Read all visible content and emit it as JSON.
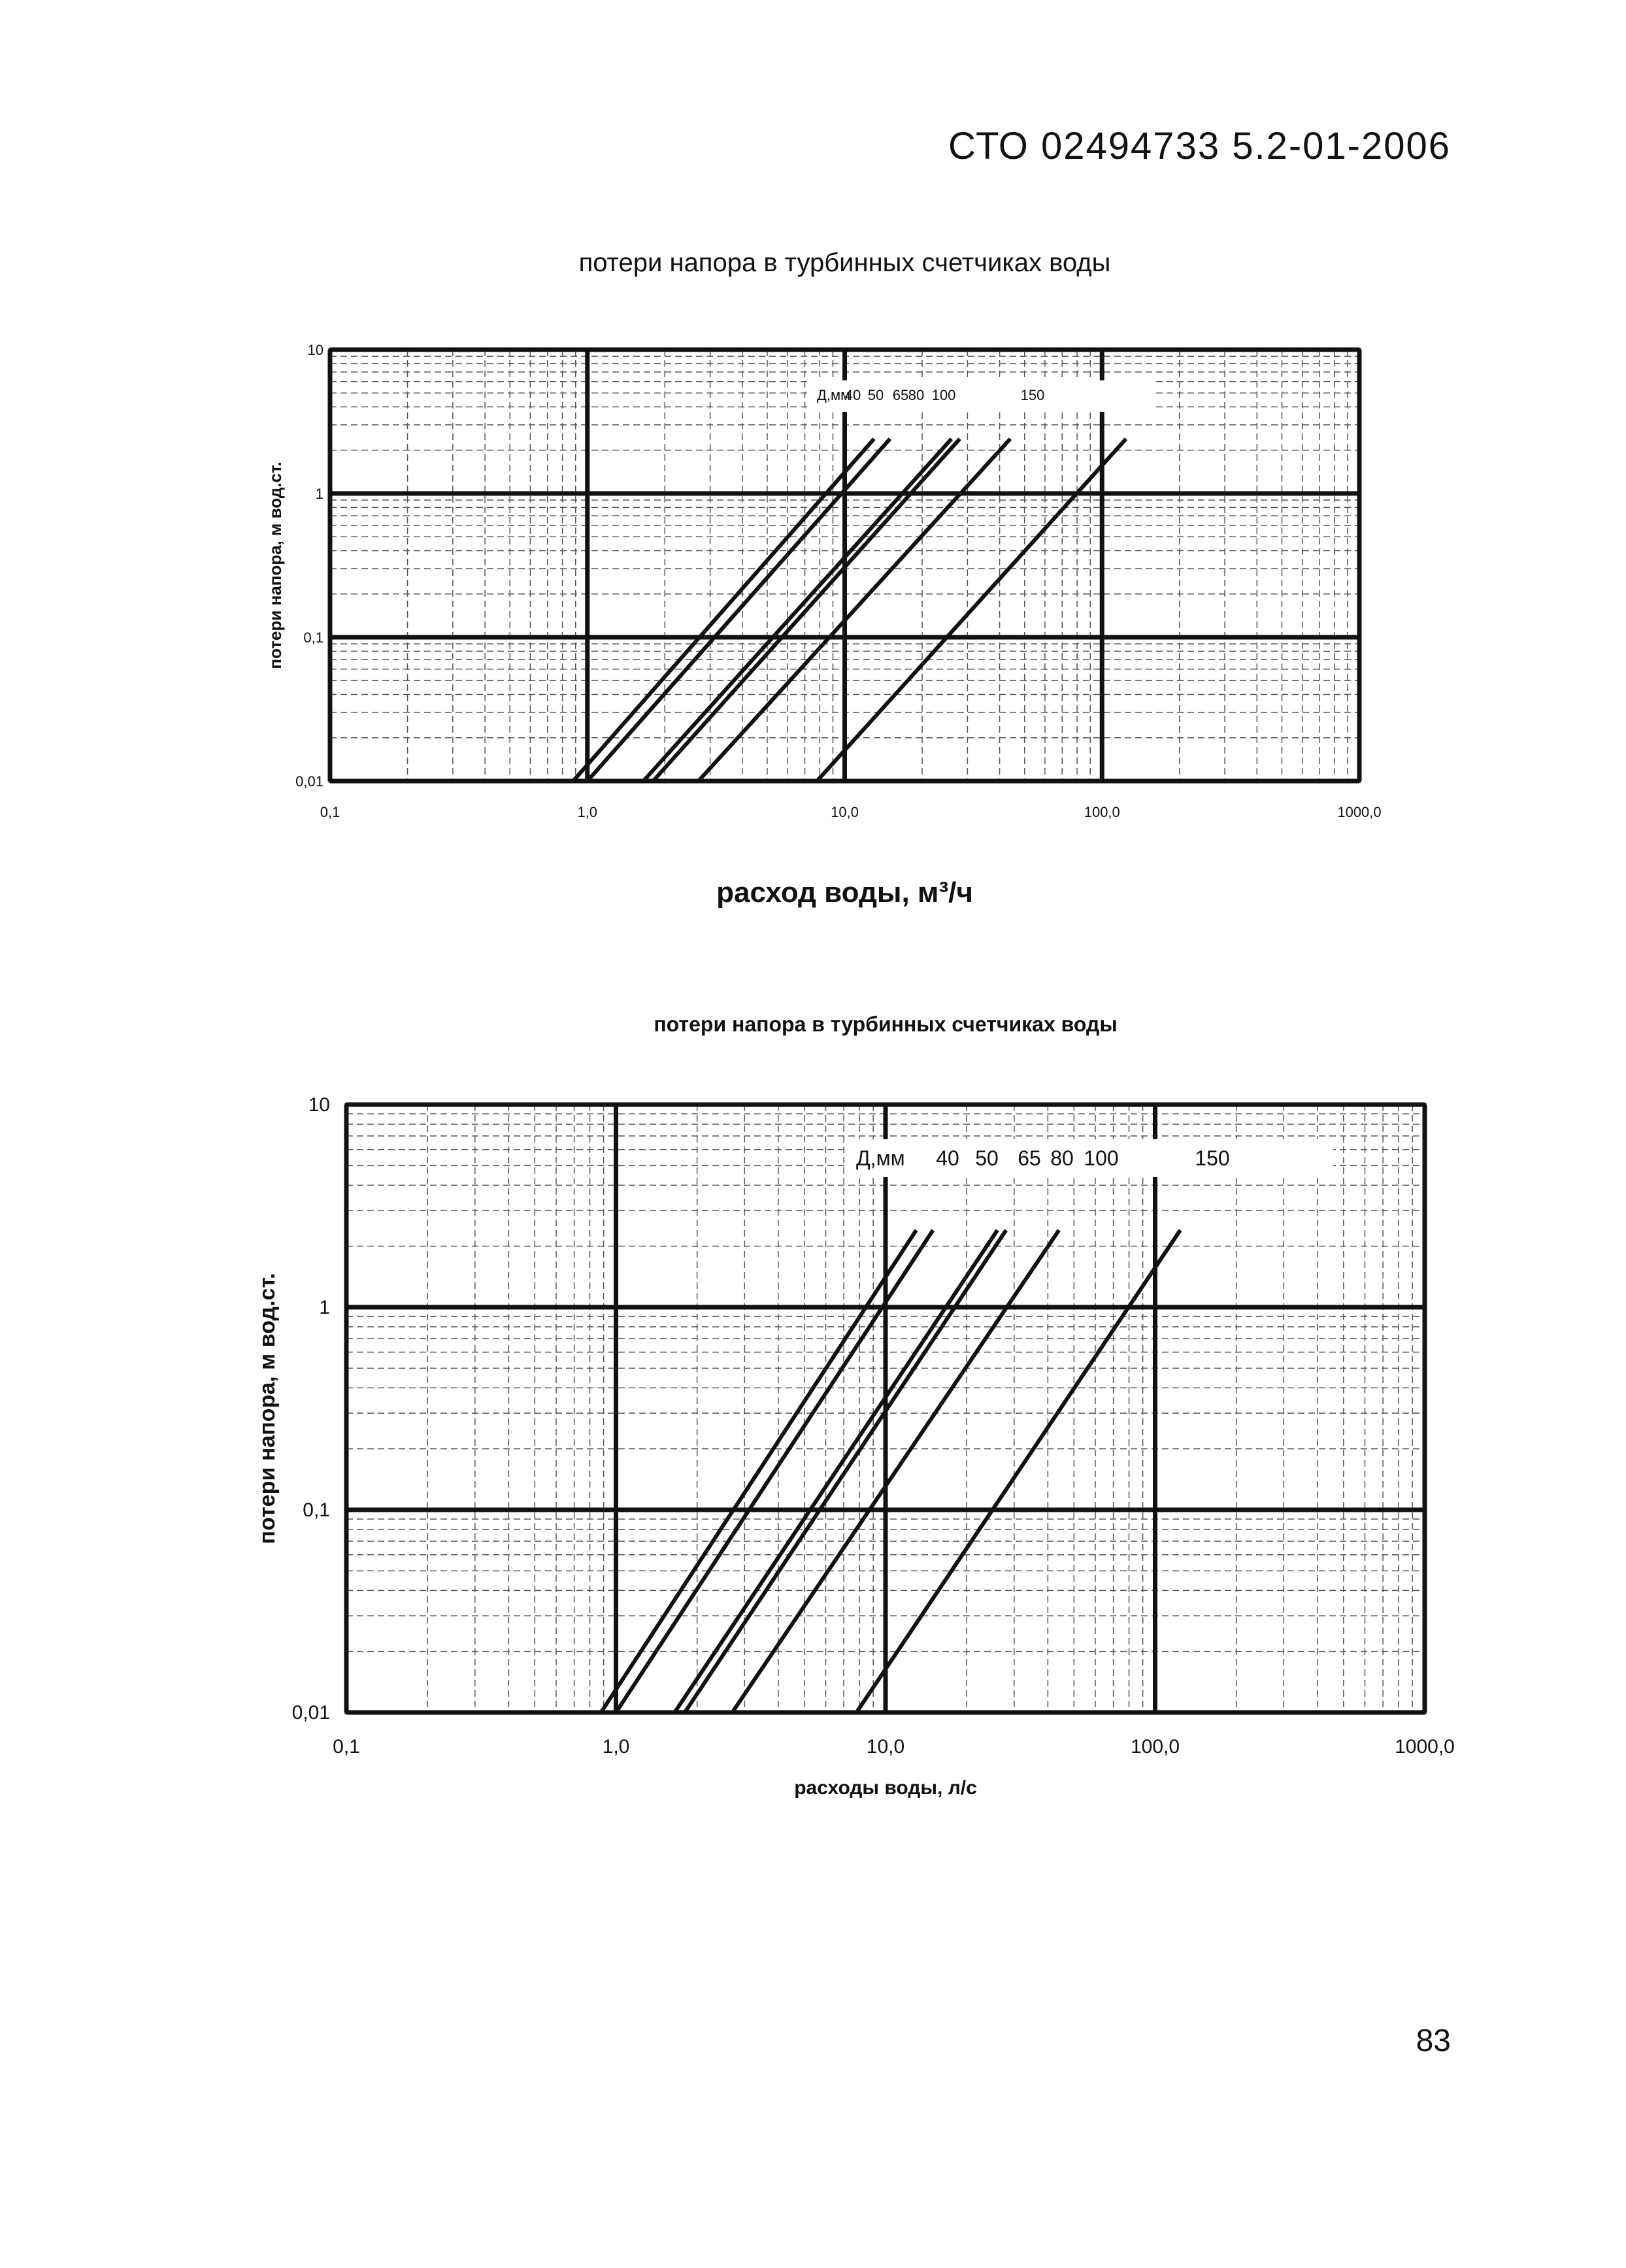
{
  "header": {
    "doc_code": "СТО 02494733 5.2-01-2006"
  },
  "footer": {
    "page_number": "83"
  },
  "chart_data": [
    {
      "type": "line",
      "title": "потери напора в турбинных счетчиках воды",
      "xlabel": "расход воды, м³/ч",
      "ylabel": "потери напора, м вод.ст.",
      "x_scale": "log",
      "y_scale": "log",
      "xlim": [
        0.1,
        1000
      ],
      "ylim": [
        0.01,
        10
      ],
      "x_ticks": [
        "0,1",
        "1,0",
        "10,0",
        "100,0",
        "1000,0"
      ],
      "y_ticks": [
        "0,01",
        "0,1",
        "1",
        "10"
      ],
      "grid": true,
      "legend_prefix": "Д,мм",
      "series": [
        {
          "name": "40",
          "points": [
            [
              0.88,
              0.01
            ],
            [
              13,
              2.4
            ]
          ]
        },
        {
          "name": "50",
          "points": [
            [
              1.0,
              0.01
            ],
            [
              15,
              2.4
            ]
          ]
        },
        {
          "name": "65",
          "points": [
            [
              1.65,
              0.01
            ],
            [
              26,
              2.4
            ]
          ]
        },
        {
          "name": "80",
          "points": [
            [
              1.8,
              0.01
            ],
            [
              28,
              2.4
            ]
          ]
        },
        {
          "name": "100",
          "points": [
            [
              2.7,
              0.01
            ],
            [
              44,
              2.4
            ]
          ]
        },
        {
          "name": "150",
          "points": [
            [
              7.8,
              0.01
            ],
            [
              124,
              2.4
            ]
          ]
        }
      ]
    },
    {
      "type": "line",
      "title": "потери напора в турбинных счетчиках воды",
      "xlabel": "расходы воды, л/с",
      "ylabel": "потери напора, м вод.ст.",
      "x_scale": "log",
      "y_scale": "log",
      "xlim": [
        0.1,
        1000
      ],
      "ylim": [
        0.01,
        10
      ],
      "x_ticks": [
        "0,1",
        "1,0",
        "10,0",
        "100,0",
        "1000,0"
      ],
      "y_ticks": [
        "0,01",
        "0,1",
        "1",
        "10"
      ],
      "grid": true,
      "legend_prefix": "Д,мм",
      "series": [
        {
          "name": "40",
          "points": [
            [
              0.88,
              0.01
            ],
            [
              13,
              2.4
            ]
          ]
        },
        {
          "name": "50",
          "points": [
            [
              1.0,
              0.01
            ],
            [
              15,
              2.4
            ]
          ]
        },
        {
          "name": "65",
          "points": [
            [
              1.65,
              0.01
            ],
            [
              26,
              2.4
            ]
          ]
        },
        {
          "name": "80",
          "points": [
            [
              1.8,
              0.01
            ],
            [
              28,
              2.4
            ]
          ]
        },
        {
          "name": "100",
          "points": [
            [
              2.7,
              0.01
            ],
            [
              44,
              2.4
            ]
          ]
        },
        {
          "name": "150",
          "points": [
            [
              7.8,
              0.01
            ],
            [
              124,
              2.4
            ]
          ]
        }
      ]
    }
  ]
}
